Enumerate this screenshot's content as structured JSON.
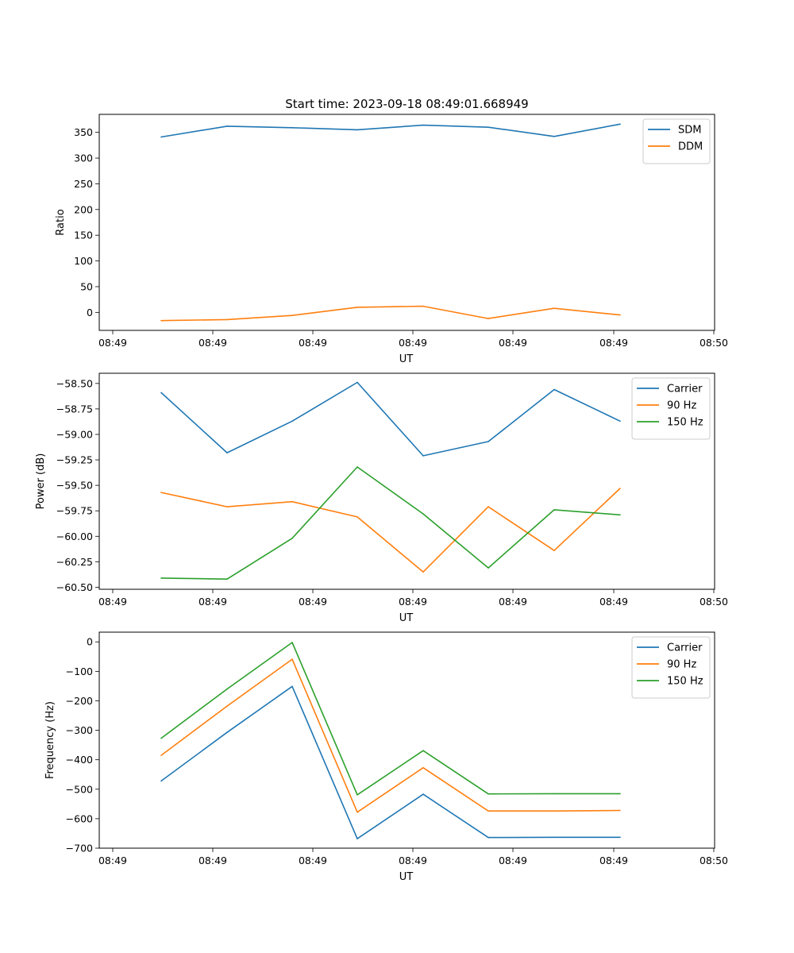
{
  "chart_data": [
    {
      "type": "line",
      "title": "Start time: 2023-09-18 08:49:01.668949",
      "xlabel": "UT",
      "ylabel": "Ratio",
      "x_tick_labels": [
        "08:49",
        "08:49",
        "08:49",
        "08:49",
        "08:49",
        "08:49",
        "08:49"
      ],
      "x_end_label": "08:50",
      "ylim": [
        -35,
        385
      ],
      "yticks": [
        0,
        50,
        100,
        150,
        200,
        250,
        300,
        350
      ],
      "ytick_labels": [
        "0",
        "50",
        "100",
        "150",
        "200",
        "250",
        "300",
        "350"
      ],
      "legend_position": "top-right",
      "series": [
        {
          "name": "SDM",
          "color": "#1f77b4",
          "values": [
            341,
            362,
            359,
            355,
            364,
            360,
            342,
            366
          ]
        },
        {
          "name": "DDM",
          "color": "#ff7f0e",
          "values": [
            -16,
            -14,
            -6,
            10,
            12,
            -12,
            8,
            -5
          ]
        }
      ]
    },
    {
      "type": "line",
      "title": "",
      "xlabel": "UT",
      "ylabel": "Power (dB)",
      "x_tick_labels": [
        "08:49",
        "08:49",
        "08:49",
        "08:49",
        "08:49",
        "08:49",
        "08:49"
      ],
      "x_end_label": "08:50",
      "ylim": [
        -60.52,
        -58.4
      ],
      "yticks": [
        -58.5,
        -58.75,
        -59.0,
        -59.25,
        -59.5,
        -59.75,
        -60.0,
        -60.25,
        -60.5
      ],
      "ytick_labels": [
        "−58.50",
        "−58.75",
        "−59.00",
        "−59.25",
        "−59.50",
        "−59.75",
        "−60.00",
        "−60.25",
        "−60.50"
      ],
      "legend_position": "top-right",
      "series": [
        {
          "name": "Carrier",
          "color": "#1f77b4",
          "values": [
            -58.59,
            -59.18,
            -58.87,
            -58.49,
            -59.21,
            -59.07,
            -58.56,
            -58.87
          ]
        },
        {
          "name": "90 Hz",
          "color": "#ff7f0e",
          "values": [
            -59.57,
            -59.71,
            -59.66,
            -59.81,
            -60.35,
            -59.71,
            -60.14,
            -59.53
          ]
        },
        {
          "name": "150 Hz",
          "color": "#2ca02c",
          "values": [
            -60.41,
            -60.42,
            -60.02,
            -59.32,
            -59.78,
            -60.31,
            -59.74,
            -59.79
          ]
        }
      ]
    },
    {
      "type": "line",
      "title": "",
      "xlabel": "UT",
      "ylabel": "Frequency (Hz)",
      "x_tick_labels": [
        "08:49",
        "08:49",
        "08:49",
        "08:49",
        "08:49",
        "08:49",
        "08:49"
      ],
      "x_end_label": "08:50",
      "ylim": [
        -700,
        33
      ],
      "yticks": [
        0,
        -100,
        -200,
        -300,
        -400,
        -500,
        -600,
        -700
      ],
      "ytick_labels": [
        "0",
        "−100",
        "−200",
        "−300",
        "−400",
        "−500",
        "−600",
        "−700"
      ],
      "legend_position": "top-right",
      "series": [
        {
          "name": "Carrier",
          "color": "#1f77b4",
          "values": [
            -472,
            -307,
            -151,
            -668,
            -517,
            -664,
            -663,
            -663
          ]
        },
        {
          "name": "90 Hz",
          "color": "#ff7f0e",
          "values": [
            -385,
            -218,
            -59,
            -578,
            -427,
            -574,
            -574,
            -572
          ]
        },
        {
          "name": "150 Hz",
          "color": "#2ca02c",
          "values": [
            -327,
            -160,
            -2,
            -519,
            -369,
            -516,
            -515,
            -515
          ]
        }
      ]
    }
  ]
}
